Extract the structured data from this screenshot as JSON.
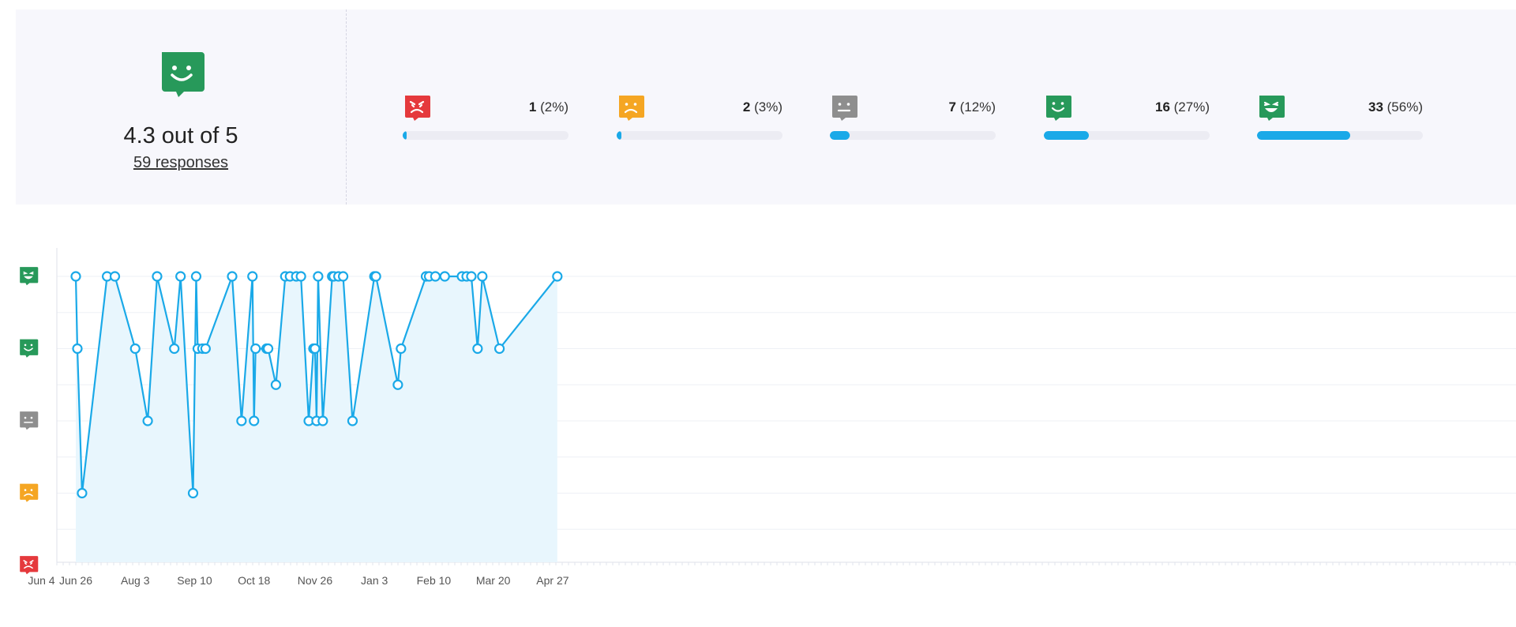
{
  "summary": {
    "score_text": "4.3 out of 5",
    "responses_text": "59 responses",
    "score_icon": "smile-face-icon"
  },
  "distribution": [
    {
      "icon": "angry-face-icon",
      "color": "#e5393c",
      "count": "1",
      "percent": "(2%)",
      "fraction": 0.02
    },
    {
      "icon": "sad-face-icon",
      "color": "#f5a623",
      "count": "2",
      "percent": "(3%)",
      "fraction": 0.03
    },
    {
      "icon": "neutral-face-icon",
      "color": "#8e8e8e",
      "count": "7",
      "percent": "(12%)",
      "fraction": 0.12
    },
    {
      "icon": "smile-face-icon",
      "color": "#27995a",
      "count": "16",
      "percent": "(27%)",
      "fraction": 0.27
    },
    {
      "icon": "grin-face-icon",
      "color": "#27995a",
      "count": "33",
      "percent": "(56%)",
      "fraction": 0.56
    }
  ],
  "colors": {
    "line": "#1aa9e8",
    "area": "#e8f6fd",
    "bar_fill": "#1aa9e8",
    "bar_track": "#ececf3",
    "panel_bg": "#f7f7fc"
  },
  "chart_data": {
    "type": "line",
    "title": "",
    "xlabel": "",
    "ylabel": "",
    "x_ticks": [
      "Jun 26",
      "Aug 3",
      "Sep 10",
      "Oct 18",
      "Nov 26",
      "Jan 3",
      "Feb 10",
      "Mar 20",
      "Apr 27",
      "Jun 4"
    ],
    "xlim": [
      "Jun 26",
      "Jul 5"
    ],
    "ylim": [
      1,
      5
    ],
    "y_ticks": [
      {
        "value": 5,
        "icon": "grin-face-icon"
      },
      {
        "value": 4,
        "icon": "smile-face-icon"
      },
      {
        "value": 3,
        "icon": "neutral-face-icon"
      },
      {
        "value": 2,
        "icon": "sad-face-icon"
      },
      {
        "value": 1,
        "icon": "angry-face-icon"
      }
    ],
    "grid": true,
    "area_fill": true,
    "series": [
      {
        "points": [
          {
            "x": "Jun 26",
            "y": 5
          },
          {
            "x": "Jun 27",
            "y": 4
          },
          {
            "x": "Jun 30",
            "y": 2
          },
          {
            "x": "Jul 16",
            "y": 5
          },
          {
            "x": "Jul 21",
            "y": 5
          },
          {
            "x": "Aug 3",
            "y": 4
          },
          {
            "x": "Aug 11",
            "y": 3
          },
          {
            "x": "Aug 17",
            "y": 5
          },
          {
            "x": "Aug 28",
            "y": 4
          },
          {
            "x": "Sep 1",
            "y": 5
          },
          {
            "x": "Sep 9",
            "y": 2
          },
          {
            "x": "Sep 11",
            "y": 5
          },
          {
            "x": "Sep 12",
            "y": 4
          },
          {
            "x": "Sep 15",
            "y": 4
          },
          {
            "x": "Sep 17",
            "y": 4
          },
          {
            "x": "Oct 4",
            "y": 5
          },
          {
            "x": "Oct 10",
            "y": 3
          },
          {
            "x": "Oct 17",
            "y": 5
          },
          {
            "x": "Oct 18",
            "y": 3
          },
          {
            "x": "Oct 19",
            "y": 4
          },
          {
            "x": "Oct 26",
            "y": 4
          },
          {
            "x": "Oct 27",
            "y": 4
          },
          {
            "x": "Nov 1",
            "y": 3.5
          },
          {
            "x": "Nov 7",
            "y": 5
          },
          {
            "x": "Nov 10",
            "y": 5
          },
          {
            "x": "Nov 14",
            "y": 5
          },
          {
            "x": "Nov 17",
            "y": 5
          },
          {
            "x": "Nov 22",
            "y": 3
          },
          {
            "x": "Nov 25",
            "y": 4
          },
          {
            "x": "Nov 26",
            "y": 4
          },
          {
            "x": "Nov 27",
            "y": 3
          },
          {
            "x": "Nov 28",
            "y": 5
          },
          {
            "x": "Dec 1",
            "y": 3
          },
          {
            "x": "Dec 7",
            "y": 5
          },
          {
            "x": "Dec 8",
            "y": 5
          },
          {
            "x": "Dec 11",
            "y": 5
          },
          {
            "x": "Dec 14",
            "y": 5
          },
          {
            "x": "Dec 20",
            "y": 3
          },
          {
            "x": "Jan 3",
            "y": 5
          },
          {
            "x": "Jan 4",
            "y": 5
          },
          {
            "x": "Jan 18",
            "y": 3.5
          },
          {
            "x": "Jan 20",
            "y": 4
          },
          {
            "x": "Feb 5",
            "y": 5
          },
          {
            "x": "Feb 7",
            "y": 5
          },
          {
            "x": "Feb 11",
            "y": 5
          },
          {
            "x": "Feb 17",
            "y": 5
          },
          {
            "x": "Feb 28",
            "y": 5
          },
          {
            "x": "Mar 3",
            "y": 5
          },
          {
            "x": "Mar 6",
            "y": 5
          },
          {
            "x": "Mar 10",
            "y": 4
          },
          {
            "x": "Mar 13",
            "y": 5
          },
          {
            "x": "Mar 24",
            "y": 4
          },
          {
            "x": "Apr 30",
            "y": 5
          }
        ]
      }
    ]
  }
}
